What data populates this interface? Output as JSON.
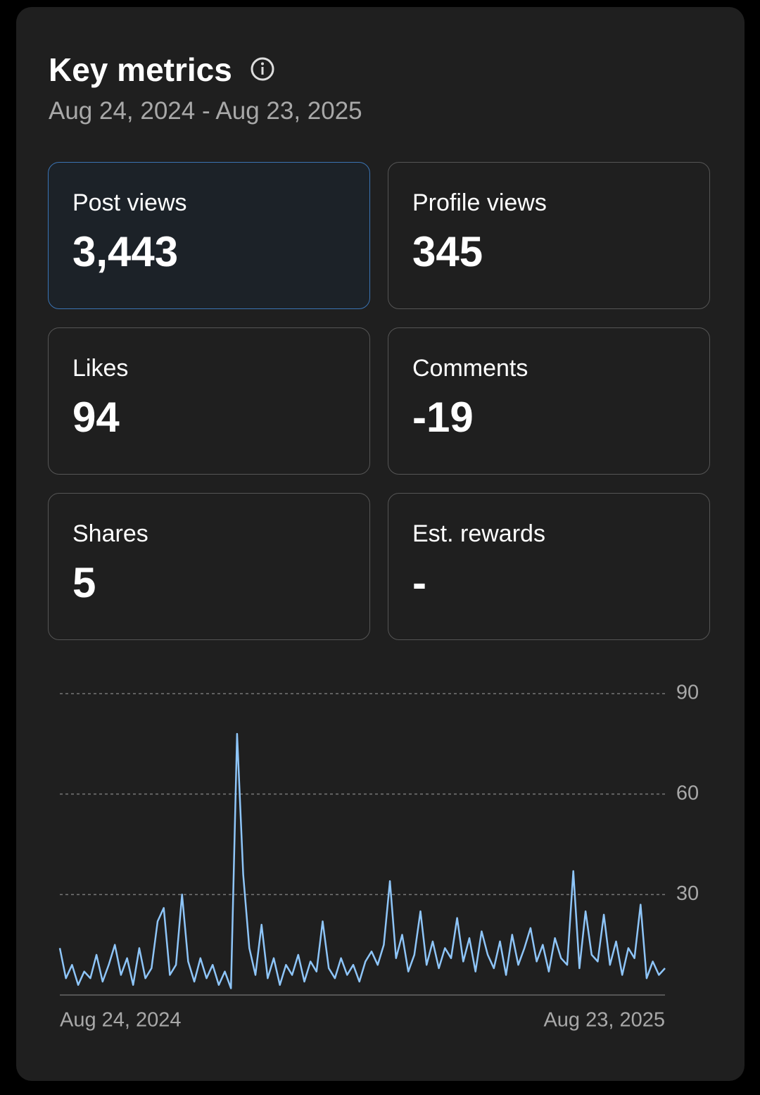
{
  "header": {
    "title": "Key metrics",
    "date_range": "Aug 24, 2024 - Aug 23, 2025"
  },
  "metrics": [
    {
      "label": "Post views",
      "value": "3,443"
    },
    {
      "label": "Profile views",
      "value": "345"
    },
    {
      "label": "Likes",
      "value": "94"
    },
    {
      "label": "Comments",
      "value": "-19"
    },
    {
      "label": "Shares",
      "value": "5"
    },
    {
      "label": "Est. rewards",
      "value": "-"
    }
  ],
  "chart_data": {
    "type": "line",
    "color": "#8ec5f8",
    "categories": [
      "Aug 24, 2024",
      null,
      null,
      null,
      null,
      null,
      null,
      null,
      null,
      null,
      null,
      null,
      null,
      null,
      null,
      null,
      null,
      null,
      null,
      null,
      null,
      null,
      null,
      null,
      null,
      null,
      null,
      null,
      null,
      null,
      null,
      null,
      null,
      null,
      null,
      null,
      null,
      null,
      null,
      null,
      null,
      null,
      null,
      null,
      null,
      null,
      null,
      null,
      null,
      null,
      null,
      null,
      null,
      null,
      null,
      null,
      null,
      null,
      null,
      null,
      null,
      null,
      null,
      null,
      null,
      null,
      null,
      null,
      null,
      null,
      null,
      null,
      null,
      null,
      null,
      null,
      null,
      null,
      null,
      null,
      null,
      null,
      null,
      null,
      null,
      null,
      null,
      null,
      null,
      null,
      null,
      null,
      null,
      null,
      null,
      null,
      null,
      null,
      null,
      "Aug 23, 2025"
    ],
    "values": [
      14,
      5,
      9,
      3,
      7,
      5,
      12,
      4,
      9,
      15,
      6,
      11,
      3,
      14,
      5,
      8,
      22,
      26,
      6,
      9,
      30,
      10,
      4,
      11,
      5,
      9,
      3,
      7,
      2,
      78,
      36,
      14,
      6,
      21,
      5,
      11,
      3,
      9,
      6,
      12,
      4,
      10,
      7,
      22,
      8,
      5,
      11,
      6,
      9,
      4,
      10,
      13,
      9,
      15,
      34,
      11,
      18,
      7,
      12,
      25,
      9,
      16,
      8,
      14,
      11,
      23,
      10,
      17,
      7,
      19,
      12,
      8,
      16,
      6,
      18,
      9,
      14,
      20,
      10,
      15,
      7,
      17,
      11,
      9,
      37,
      8,
      25,
      12,
      10,
      24,
      9,
      16,
      6,
      14,
      11,
      27,
      5,
      10,
      6,
      8
    ],
    "ylim": [
      0,
      90
    ],
    "yticks": [
      30,
      60,
      90
    ],
    "grid": true
  }
}
